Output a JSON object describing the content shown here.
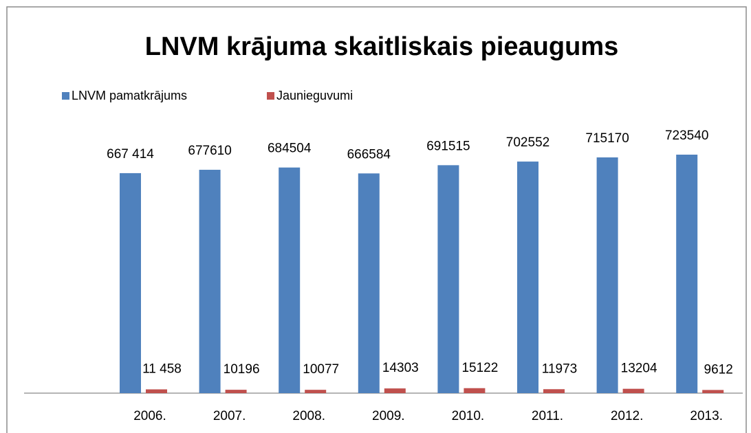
{
  "chart_data": {
    "type": "bar",
    "title": "LNVM krājuma skaitliskais pieaugums",
    "categories": [
      "2006.",
      "2007.",
      "2008.",
      "2009.",
      "2010.",
      "2011.",
      "2012.",
      "2013."
    ],
    "series": [
      {
        "name": "LNVM pamatkrājums",
        "color": "#4f81bd",
        "values": [
          667414,
          677610,
          684504,
          666584,
          691515,
          702552,
          715170,
          723540
        ],
        "value_labels": [
          "667 414",
          "677610",
          "684504",
          "666584",
          "691515",
          "702552",
          "715170",
          "723540"
        ]
      },
      {
        "name": "Jaunieguvumi",
        "color": "#c0504d",
        "values": [
          11458,
          10196,
          10077,
          14303,
          15122,
          11973,
          13204,
          9612
        ],
        "value_labels": [
          "11 458",
          "10196",
          "10077",
          "14303",
          "15122",
          "11973",
          "13204",
          "9612"
        ]
      }
    ],
    "legend": "top-left"
  }
}
